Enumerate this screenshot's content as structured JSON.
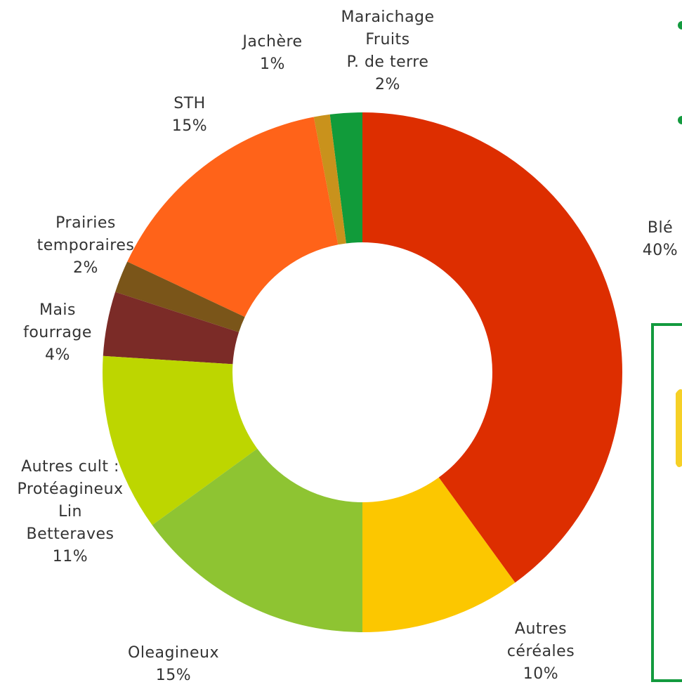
{
  "chart_data": {
    "type": "donut",
    "categories": [
      "Blé",
      "Autres\ncéréales",
      "Oleagineux",
      "Autres cult :\nProtéagineux\nLin\nBetteraves",
      "Mais\nfourrage",
      "Prairies\ntemporaires",
      "STH",
      "Jachère",
      "Maraichage\nFruits\nP. de terre"
    ],
    "values": [
      40,
      10,
      15,
      11,
      4,
      2,
      15,
      1,
      2
    ],
    "value_labels": [
      "40%",
      "10%",
      "15%",
      "11%",
      "4%",
      "2%",
      "15%",
      "1%",
      "2%"
    ],
    "colors": [
      "#dd2e00",
      "#fcc700",
      "#8ec432",
      "#bdd600",
      "#7b2b27",
      "#7a5519",
      "#ff6319",
      "#c9921c",
      "#119b3a"
    ]
  }
}
